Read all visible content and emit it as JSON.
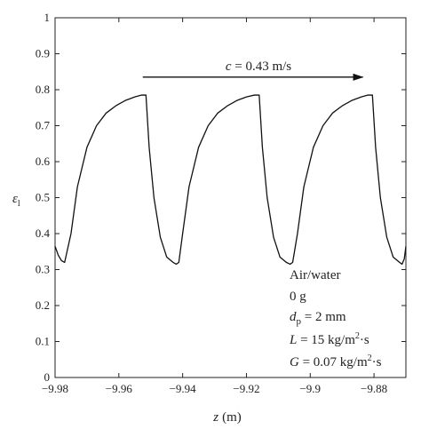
{
  "chart_data": {
    "type": "line",
    "title": "",
    "xlabel_var": "z",
    "xlabel_unit": "(m)",
    "ylabel_var": "ε",
    "ylabel_sub": "l",
    "xlim": [
      -9.98,
      -9.87
    ],
    "ylim": [
      0,
      1
    ],
    "xticks": [
      -9.98,
      -9.96,
      -9.94,
      -9.92,
      -9.9,
      -9.88
    ],
    "xtick_labels": [
      "−9.98",
      "−9.96",
      "−9.94",
      "−9.92",
      "−9.9",
      "−9.88"
    ],
    "yticks": [
      0,
      0.1,
      0.2,
      0.3,
      0.4,
      0.5,
      0.6,
      0.7,
      0.8,
      0.9,
      1
    ],
    "ytick_labels": [
      "0",
      "0.1",
      "0.2",
      "0.3",
      "0.4",
      "0.5",
      "0.6",
      "0.7",
      "0.8",
      "0.9",
      "1"
    ],
    "grid": false,
    "series": [
      {
        "x": [
          -9.98,
          -9.979,
          -9.978,
          -9.977,
          -9.975,
          -9.973,
          -9.97,
          -9.967,
          -9.964,
          -9.961,
          -9.958,
          -9.955,
          -9.953,
          -9.9515,
          -9.9505,
          -9.949,
          -9.947,
          -9.945,
          -9.943,
          -9.942,
          -9.9412,
          -9.94,
          -9.938,
          -9.935,
          -9.932,
          -9.929,
          -9.926,
          -9.923,
          -9.92,
          -9.9175,
          -9.916,
          -9.915,
          -9.9135,
          -9.9115,
          -9.9095,
          -9.9075,
          -9.9063,
          -9.9055,
          -9.904,
          -9.902,
          -9.899,
          -9.896,
          -9.893,
          -9.89,
          -9.887,
          -9.884,
          -9.882,
          -9.8805,
          -9.8795,
          -9.878,
          -9.876,
          -9.874,
          -9.872,
          -9.8712,
          -9.8705,
          -9.87
        ],
        "y": [
          0.365,
          0.34,
          0.325,
          0.32,
          0.4,
          0.53,
          0.64,
          0.7,
          0.735,
          0.755,
          0.77,
          0.78,
          0.785,
          0.785,
          0.64,
          0.5,
          0.39,
          0.335,
          0.32,
          0.315,
          0.32,
          0.4,
          0.53,
          0.64,
          0.7,
          0.735,
          0.755,
          0.77,
          0.78,
          0.785,
          0.785,
          0.64,
          0.5,
          0.39,
          0.335,
          0.32,
          0.315,
          0.32,
          0.4,
          0.53,
          0.64,
          0.7,
          0.735,
          0.755,
          0.77,
          0.78,
          0.785,
          0.785,
          0.64,
          0.5,
          0.39,
          0.335,
          0.32,
          0.315,
          0.33,
          0.365
        ]
      }
    ],
    "arrow_label_var": "c",
    "arrow_label_value": " = 0.43 m/s",
    "arrow_x": [
      -9.9525,
      -9.8835
    ],
    "arrow_y": 0.835,
    "annotations": {
      "line1": "Air/water",
      "line2": "0 g",
      "line3_var": "d",
      "line3_sub": "p",
      "line3_rest": " = 2 mm",
      "line4_var": "L",
      "line4_rest": " = 15 kg/m",
      "line4_sup": "2",
      "line4_tail": "·s",
      "line5_var": "G",
      "line5_rest": " = 0.07 kg/m",
      "line5_sup": "2",
      "line5_tail": "·s"
    }
  }
}
